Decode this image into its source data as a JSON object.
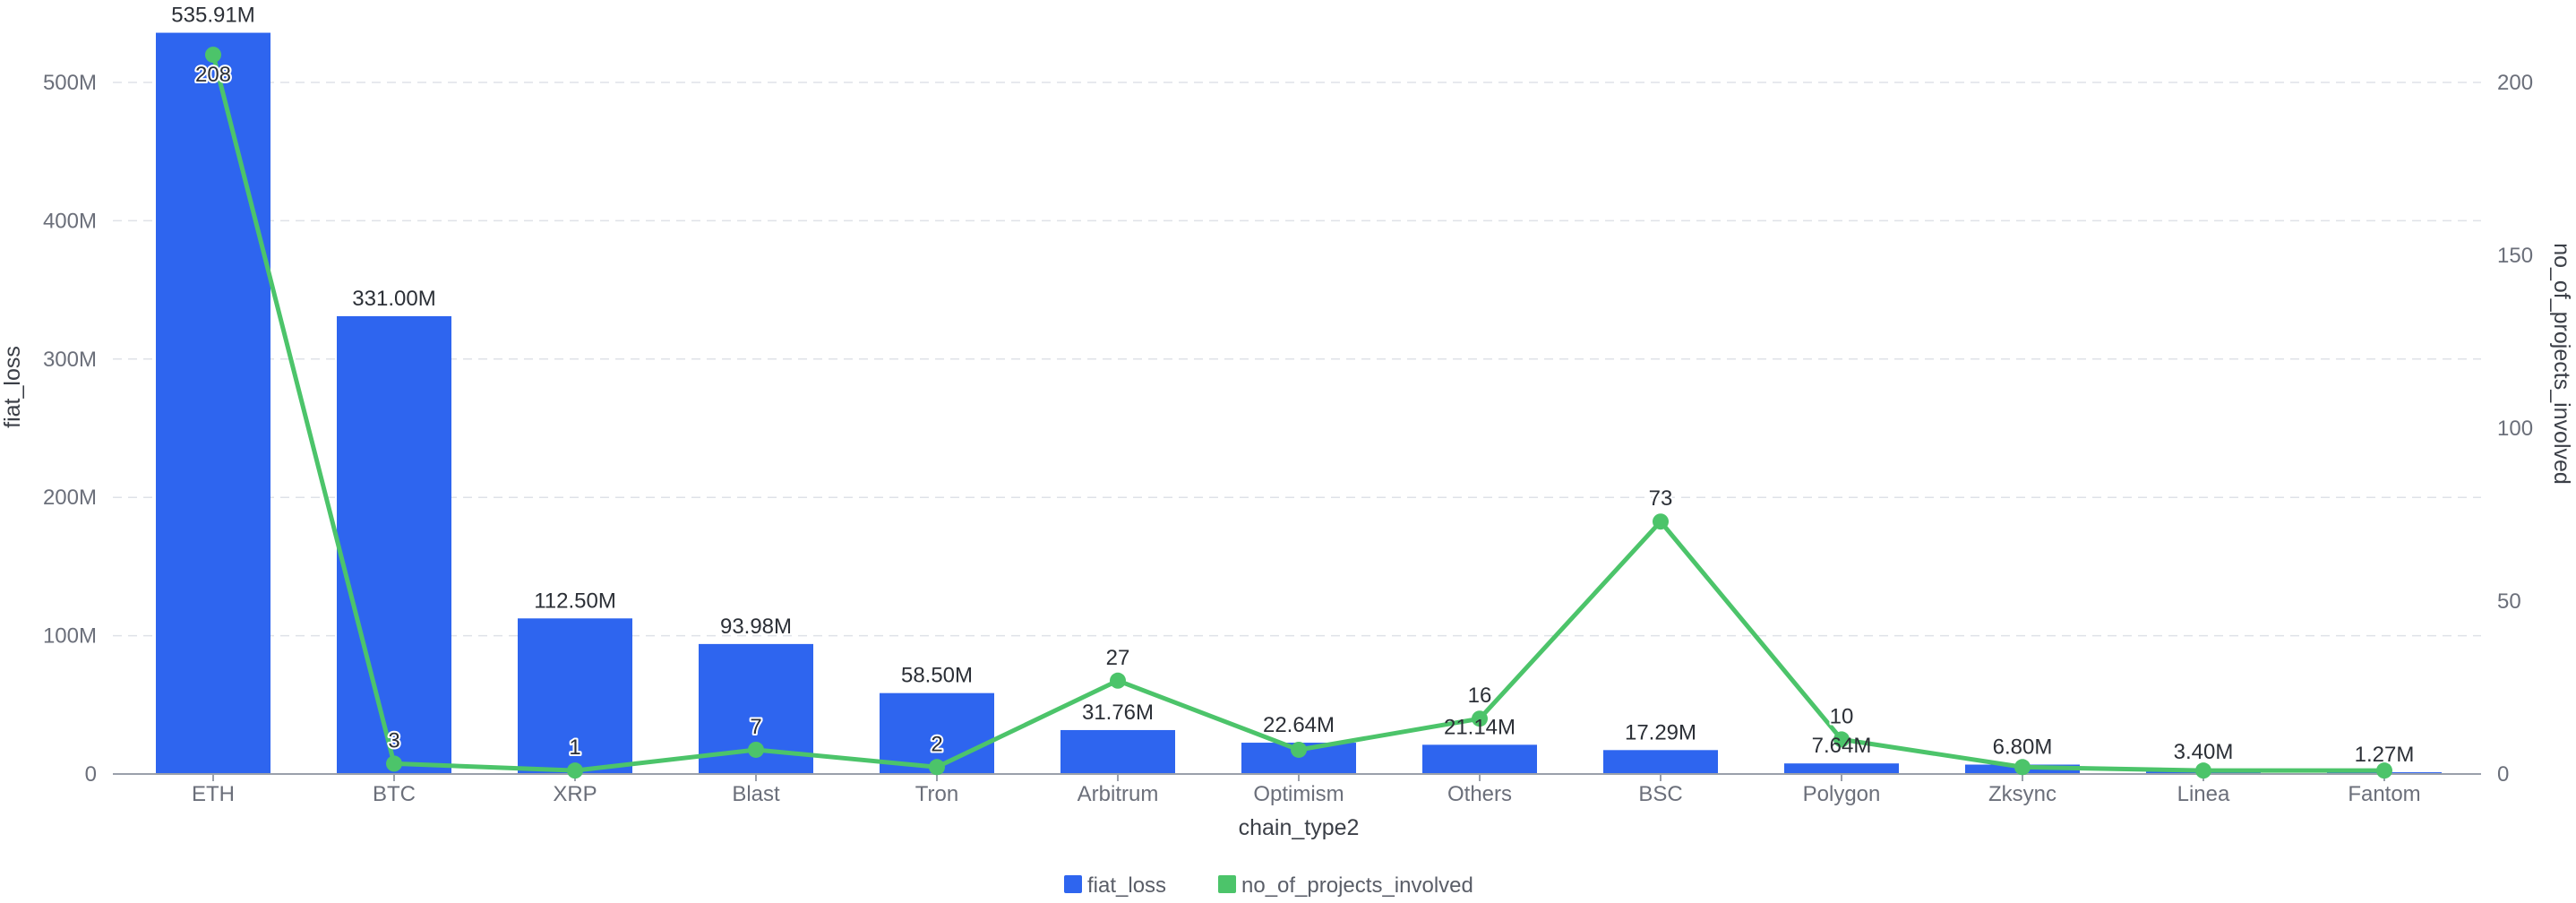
{
  "colors": {
    "bar": "#2e65ef",
    "line": "#4cc46a",
    "grid": "#dfe2e8",
    "axis": "#9aa0aa"
  },
  "chart_data": {
    "type": "bar",
    "categories": [
      "ETH",
      "BTC",
      "XRP",
      "Blast",
      "Tron",
      "Arbitrum",
      "Optimism",
      "Others",
      "BSC",
      "Polygon",
      "Zksync",
      "Linea",
      "Fantom"
    ],
    "series": [
      {
        "name": "fiat_loss",
        "type": "bar",
        "axis": "left",
        "values": [
          535910000,
          331000000,
          112500000,
          93980000,
          58500000,
          31760000,
          22640000,
          21140000,
          17290000,
          7640000,
          6800000,
          3400000,
          1270000
        ],
        "labels": [
          "535.91M",
          "331.00M",
          "112.50M",
          "93.98M",
          "58.50M",
          "31.76M",
          "22.64M",
          "21.14M",
          "17.29M",
          "7.64M",
          "6.80M",
          "3.40M",
          "1.27M"
        ]
      },
      {
        "name": "no_of_projects_involved",
        "type": "line",
        "axis": "right",
        "values": [
          208,
          3,
          1,
          7,
          2,
          27,
          7,
          16,
          73,
          10,
          2,
          1,
          1
        ],
        "labels": [
          "208",
          "3",
          "1",
          "7",
          "2",
          "27",
          "",
          "16",
          "73",
          "10",
          "",
          "",
          ""
        ]
      }
    ],
    "xlabel": "chain_type2",
    "ylabel": "fiat_loss",
    "y2label": "no_of_projects_involved",
    "ylim": [
      0,
      500000000
    ],
    "y2lim": [
      0,
      200
    ],
    "yticks": [
      {
        "value": 0,
        "label": "0"
      },
      {
        "value": 100000000,
        "label": "100M"
      },
      {
        "value": 200000000,
        "label": "200M"
      },
      {
        "value": 300000000,
        "label": "300M"
      },
      {
        "value": 400000000,
        "label": "400M"
      },
      {
        "value": 500000000,
        "label": "500M"
      }
    ],
    "y2ticks": [
      {
        "value": 0,
        "label": "0"
      },
      {
        "value": 50,
        "label": "50"
      },
      {
        "value": 100,
        "label": "100"
      },
      {
        "value": 150,
        "label": "150"
      },
      {
        "value": 200,
        "label": "200"
      }
    ],
    "grid": true,
    "legend": "bottom-center",
    "legend_entries": [
      "fiat_loss",
      "no_of_projects_involved"
    ]
  }
}
